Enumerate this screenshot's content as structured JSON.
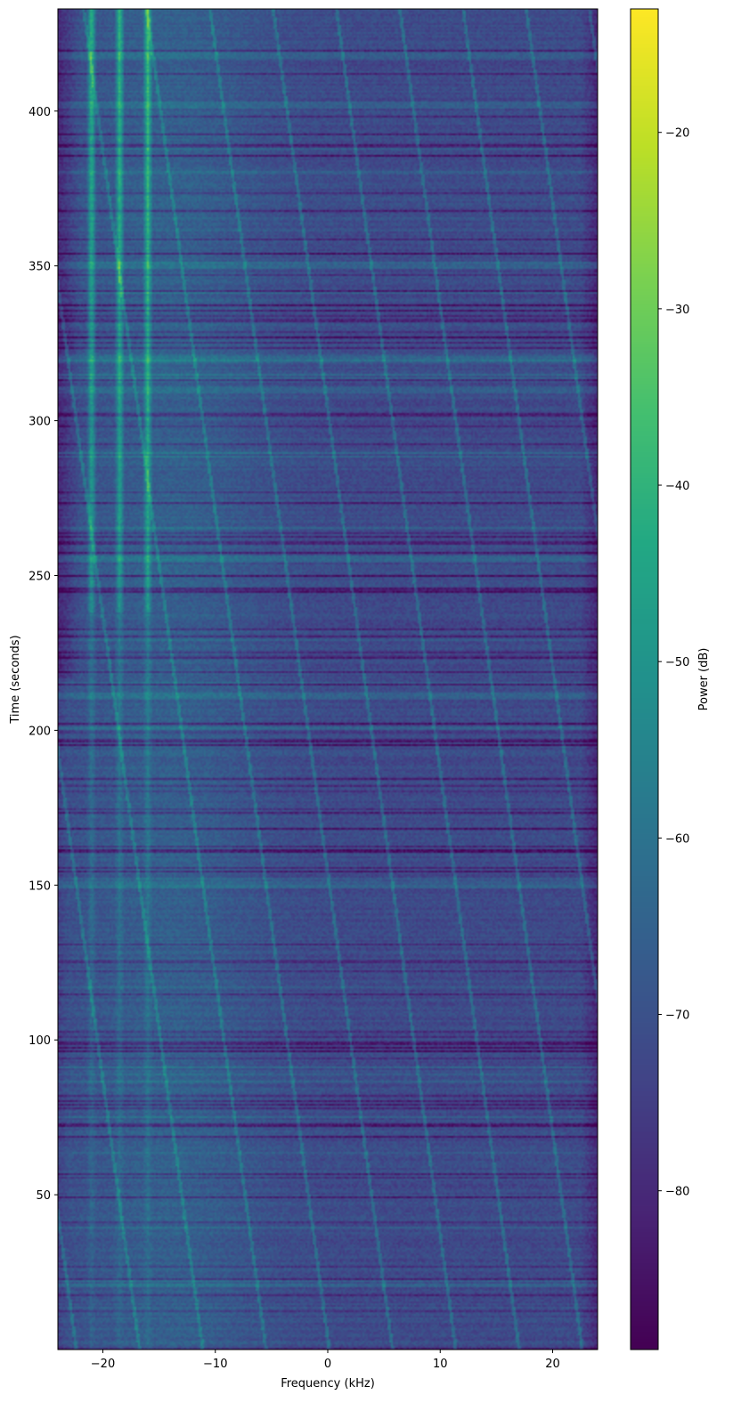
{
  "chart_data": {
    "type": "heatmap",
    "title": "",
    "xlabel": "Frequency (kHz)",
    "ylabel": "Time (seconds)",
    "xlim": [
      -24,
      24
    ],
    "ylim": [
      0,
      433
    ],
    "x_ticks": [
      -20,
      -10,
      0,
      10,
      20
    ],
    "x_tick_labels": [
      "−20",
      "−10",
      "0",
      "10",
      "20"
    ],
    "y_ticks": [
      50,
      100,
      150,
      200,
      250,
      300,
      350,
      400
    ],
    "y_tick_labels": [
      "50",
      "100",
      "150",
      "200",
      "250",
      "300",
      "350",
      "400"
    ],
    "colorbar": {
      "label": "Power (dB)",
      "range": [
        -89,
        -13
      ],
      "ticks": [
        -80,
        -70,
        -60,
        -50,
        -40,
        -30,
        -20
      ],
      "tick_labels": [
        "−80",
        "−70",
        "−60",
        "−50",
        "−40",
        "−30",
        "−20"
      ],
      "colormap": "viridis"
    },
    "grid": false,
    "features": {
      "noise_floor_db": -72,
      "band_edge_khz": [
        -22,
        22
      ],
      "strong_tones_khz": [
        -21,
        -18.5,
        -16
      ],
      "drifting_lines": true,
      "bright_bursts_s": [
        150,
        200,
        211,
        255,
        310,
        320,
        350,
        402,
        418
      ]
    }
  }
}
